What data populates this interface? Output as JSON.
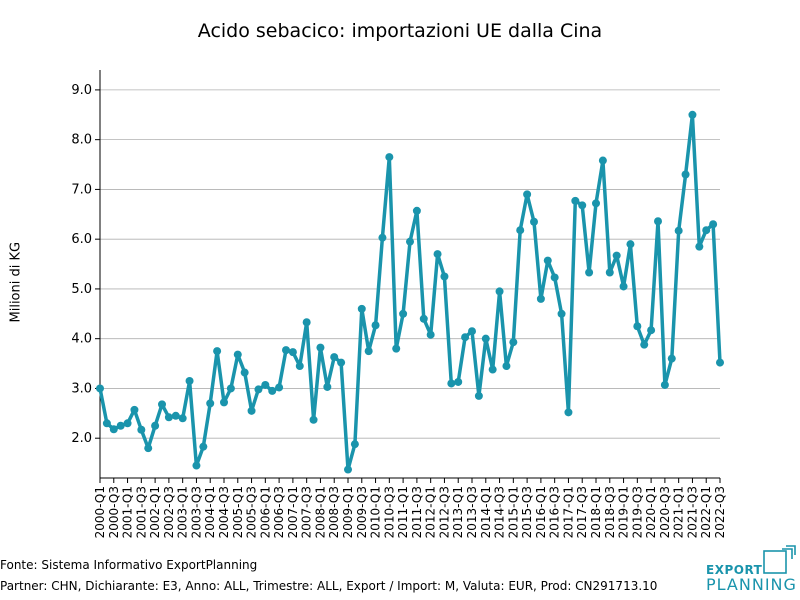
{
  "title": "Acido sebacico: importazioni UE dalla Cina",
  "footer": {
    "source": "Fonte: Sistema Informativo ExportPlanning",
    "params": "Partner: CHN, Dichiarante: E3, Anno: ALL, Trimestre: ALL, Export / Import: M, Valuta: EUR, Prod: CN291713.10"
  },
  "logo": {
    "line1": "EXPORT",
    "line2": "PLANNING"
  },
  "colors": {
    "line": "#1a94ac",
    "grid": "#b0b0b0"
  },
  "chart_data": {
    "type": "line",
    "title": "Acido sebacico: importazioni UE dalla Cina",
    "xlabel": "",
    "ylabel": "Milioni di KG",
    "ylim": [
      1.2,
      9.4
    ],
    "yticks": [
      2.0,
      3.0,
      4.0,
      5.0,
      6.0,
      7.0,
      8.0,
      9.0
    ],
    "grid": "horizontal",
    "tick_labels": [
      "2000-Q1",
      "2000-Q3",
      "2001-Q1",
      "2001-Q3",
      "2002-Q1",
      "2002-Q3",
      "2003-Q1",
      "2003-Q3",
      "2004-Q1",
      "2004-Q3",
      "2005-Q1",
      "2005-Q3",
      "2006-Q1",
      "2006-Q3",
      "2007-Q1",
      "2007-Q3",
      "2008-Q1",
      "2008-Q3",
      "2009-Q1",
      "2009-Q3",
      "2010-Q1",
      "2010-Q3",
      "2011-Q1",
      "2011-Q3",
      "2012-Q1",
      "2012-Q3",
      "2013-Q1",
      "2013-Q3",
      "2014-Q1",
      "2014-Q3",
      "2015-Q1",
      "2015-Q3",
      "2016-Q1",
      "2016-Q3",
      "2017-Q1",
      "2017-Q3",
      "2018-Q1",
      "2018-Q3",
      "2019-Q1",
      "2019-Q3",
      "2020-Q1",
      "2020-Q3",
      "2021-Q1",
      "2021-Q3",
      "2022-Q1",
      "2022-Q3"
    ],
    "x": [
      "2000-Q1",
      "2000-Q2",
      "2000-Q3",
      "2000-Q4",
      "2001-Q1",
      "2001-Q2",
      "2001-Q3",
      "2001-Q4",
      "2002-Q1",
      "2002-Q2",
      "2002-Q3",
      "2002-Q4",
      "2003-Q1",
      "2003-Q2",
      "2003-Q3",
      "2003-Q4",
      "2004-Q1",
      "2004-Q2",
      "2004-Q3",
      "2004-Q4",
      "2005-Q1",
      "2005-Q2",
      "2005-Q3",
      "2005-Q4",
      "2006-Q1",
      "2006-Q2",
      "2006-Q3",
      "2006-Q4",
      "2007-Q1",
      "2007-Q2",
      "2007-Q3",
      "2007-Q4",
      "2008-Q1",
      "2008-Q2",
      "2008-Q3",
      "2008-Q4",
      "2009-Q1",
      "2009-Q2",
      "2009-Q3",
      "2009-Q4",
      "2010-Q1",
      "2010-Q2",
      "2010-Q3",
      "2010-Q4",
      "2011-Q1",
      "2011-Q2",
      "2011-Q3",
      "2011-Q4",
      "2012-Q1",
      "2012-Q2",
      "2012-Q3",
      "2012-Q4",
      "2013-Q1",
      "2013-Q2",
      "2013-Q3",
      "2013-Q4",
      "2014-Q1",
      "2014-Q2",
      "2014-Q3",
      "2014-Q4",
      "2015-Q1",
      "2015-Q2",
      "2015-Q3",
      "2015-Q4",
      "2016-Q1",
      "2016-Q2",
      "2016-Q3",
      "2016-Q4",
      "2017-Q1",
      "2017-Q2",
      "2017-Q3",
      "2017-Q4",
      "2018-Q1",
      "2018-Q2",
      "2018-Q3",
      "2018-Q4",
      "2019-Q1",
      "2019-Q2",
      "2019-Q3",
      "2019-Q4",
      "2020-Q1",
      "2020-Q2",
      "2020-Q3",
      "2020-Q4",
      "2021-Q1",
      "2021-Q2",
      "2021-Q3",
      "2021-Q4",
      "2022-Q1",
      "2022-Q2",
      "2022-Q3"
    ],
    "series": [
      {
        "name": "",
        "values": [
          3.0,
          2.3,
          2.18,
          2.25,
          2.3,
          2.57,
          2.17,
          1.8,
          2.25,
          2.68,
          2.42,
          2.45,
          2.4,
          3.15,
          1.45,
          1.83,
          2.7,
          3.75,
          2.72,
          3.0,
          3.68,
          3.32,
          2.55,
          2.98,
          3.07,
          2.95,
          3.02,
          3.77,
          3.73,
          3.45,
          4.33,
          2.37,
          3.82,
          3.03,
          3.63,
          3.52,
          1.37,
          1.88,
          4.6,
          3.75,
          4.27,
          6.03,
          7.65,
          3.8,
          4.5,
          5.95,
          6.57,
          4.4,
          4.08,
          5.7,
          5.25,
          3.1,
          3.13,
          4.03,
          4.15,
          2.85,
          4.0,
          3.38,
          4.95,
          3.45,
          3.93,
          6.18,
          6.9,
          6.35,
          4.8,
          5.57,
          5.23,
          4.5,
          2.52,
          6.77,
          6.68,
          5.33,
          6.72,
          7.58,
          5.33,
          5.67,
          5.05,
          5.9,
          4.25,
          3.88,
          4.17,
          6.36,
          3.07,
          3.6,
          6.17,
          7.3,
          8.5,
          5.85,
          6.18,
          6.3,
          3.52
        ]
      }
    ]
  }
}
